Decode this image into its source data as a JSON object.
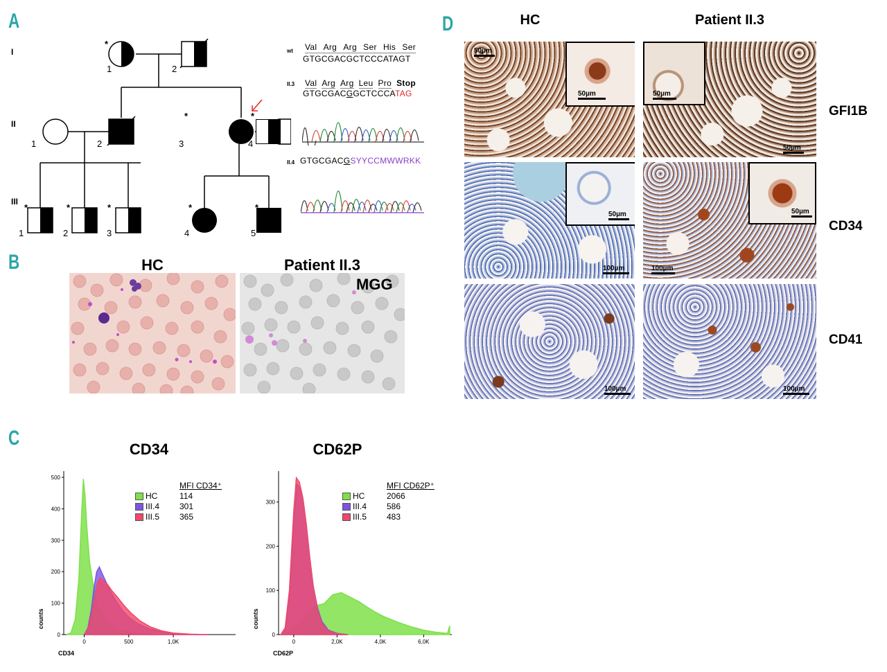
{
  "panels": {
    "a": "A",
    "b": "B",
    "c": "C",
    "d": "D"
  },
  "pedigree": {
    "generations": [
      "I",
      "II",
      "III"
    ],
    "individual_numbers": {
      "I": [
        "1",
        "2"
      ],
      "II": [
        "1",
        "2",
        "3",
        "4"
      ],
      "III": [
        "1",
        "2",
        "3",
        "4",
        "5"
      ]
    },
    "tested_marker": "*"
  },
  "sequences": {
    "wt": {
      "label": "wt",
      "amino_acids": [
        "Val",
        "Arg",
        "Arg",
        "Ser",
        "His",
        "Ser"
      ],
      "dna": "GTGCGACGCTCCCATAGT"
    },
    "ii3": {
      "label": "II.3",
      "amino_acids": [
        "Val",
        "Arg",
        "Arg",
        "Leu",
        "Pro",
        "Stop"
      ],
      "dna_prefix": "GTGCGAC",
      "dna_mut": "G",
      "dna_mid": "GCTCCCA",
      "dna_stop": "TAG"
    },
    "ii4": {
      "label": "II.4",
      "dna_prefix": "GTGCGAC",
      "dna_mut": "G",
      "dna_rest": "SYYCCMWWRKK"
    },
    "colors": {
      "stop": "#e3262b",
      "ambig": "#8a3fc7"
    }
  },
  "panel_b": {
    "left_title": "HC",
    "right_title": "Patient II.3",
    "stain": "MGG"
  },
  "panel_d": {
    "col_titles": [
      "HC",
      "Patient II.3"
    ],
    "row_labels": [
      "GFI1B",
      "CD34",
      "CD41"
    ],
    "scale_50": "50µm",
    "scale_100": "100µm"
  },
  "chart_data": [
    {
      "type": "area",
      "title": "CD34",
      "xlabel": "CD34",
      "ylabel": "counts",
      "x_ticks": [
        "0",
        "500",
        "1,0K"
      ],
      "y_ticks": [
        "0",
        "100",
        "200",
        "300",
        "400",
        "500"
      ],
      "ylim": [
        0,
        520
      ],
      "xlim": [
        -230,
        1700
      ],
      "legend_header": "MFI CD34⁺",
      "series": [
        {
          "name": "HC",
          "mfi": "114",
          "color": "#7fe04a",
          "points": [
            [
              -200,
              0
            ],
            [
              -150,
              5
            ],
            [
              -100,
              50
            ],
            [
              -60,
              180
            ],
            [
              -30,
              380
            ],
            [
              -10,
              495
            ],
            [
              10,
              440
            ],
            [
              30,
              340
            ],
            [
              60,
              230
            ],
            [
              100,
              160
            ],
            [
              140,
              110
            ],
            [
              180,
              80
            ],
            [
              220,
              55
            ],
            [
              280,
              35
            ],
            [
              350,
              20
            ],
            [
              450,
              10
            ],
            [
              600,
              4
            ],
            [
              800,
              1
            ],
            [
              1000,
              0
            ]
          ]
        },
        {
          "name": "III.4",
          "mfi": "301",
          "color": "#7b55e0",
          "points": [
            [
              0,
              0
            ],
            [
              40,
              20
            ],
            [
              80,
              80
            ],
            [
              110,
              150
            ],
            [
              140,
              200
            ],
            [
              170,
              215
            ],
            [
              200,
              195
            ],
            [
              240,
              170
            ],
            [
              290,
              140
            ],
            [
              350,
              110
            ],
            [
              420,
              80
            ],
            [
              500,
              55
            ],
            [
              600,
              35
            ],
            [
              720,
              20
            ],
            [
              850,
              10
            ],
            [
              1000,
              4
            ],
            [
              1200,
              1
            ],
            [
              1400,
              0
            ]
          ]
        },
        {
          "name": "III.5",
          "mfi": "365",
          "color": "#f0486a",
          "points": [
            [
              0,
              0
            ],
            [
              40,
              15
            ],
            [
              80,
              60
            ],
            [
              120,
              120
            ],
            [
              150,
              165
            ],
            [
              180,
              180
            ],
            [
              220,
              170
            ],
            [
              260,
              160
            ],
            [
              310,
              140
            ],
            [
              370,
              120
            ],
            [
              440,
              95
            ],
            [
              520,
              70
            ],
            [
              620,
              45
            ],
            [
              740,
              25
            ],
            [
              870,
              12
            ],
            [
              1000,
              5
            ],
            [
              1200,
              1
            ],
            [
              1400,
              0
            ]
          ]
        }
      ]
    },
    {
      "type": "area",
      "title": "CD62P",
      "xlabel": "CD62P",
      "ylabel": "counts",
      "x_ticks": [
        "0",
        "2,0K",
        "4,0K",
        "6,0K"
      ],
      "y_ticks": [
        "0",
        "100",
        "200",
        "300"
      ],
      "ylim": [
        0,
        370
      ],
      "xlim": [
        -700,
        7300
      ],
      "legend_header": "MFI CD62P⁺",
      "series": [
        {
          "name": "HC",
          "mfi": "2066",
          "color": "#7fe04a",
          "points": [
            [
              -600,
              0
            ],
            [
              -200,
              5
            ],
            [
              200,
              20
            ],
            [
              600,
              45
            ],
            [
              1000,
              65
            ],
            [
              1400,
              70
            ],
            [
              1800,
              90
            ],
            [
              2200,
              95
            ],
            [
              2600,
              85
            ],
            [
              3000,
              75
            ],
            [
              3400,
              62
            ],
            [
              3800,
              50
            ],
            [
              4200,
              40
            ],
            [
              4800,
              28
            ],
            [
              5400,
              18
            ],
            [
              6000,
              10
            ],
            [
              6600,
              5
            ],
            [
              7100,
              3
            ],
            [
              7200,
              20
            ]
          ]
        },
        {
          "name": "III.4",
          "mfi": "586",
          "color": "#7b55e0",
          "points": [
            [
              -600,
              0
            ],
            [
              -400,
              10
            ],
            [
              -200,
              80
            ],
            [
              0,
              250
            ],
            [
              150,
              340
            ],
            [
              300,
              330
            ],
            [
              450,
              300
            ],
            [
              600,
              240
            ],
            [
              750,
              170
            ],
            [
              900,
              110
            ],
            [
              1100,
              60
            ],
            [
              1300,
              30
            ],
            [
              1600,
              10
            ],
            [
              2000,
              3
            ],
            [
              2500,
              0
            ]
          ]
        },
        {
          "name": "III.5",
          "mfi": "483",
          "color": "#f0486a",
          "points": [
            [
              -600,
              0
            ],
            [
              -400,
              15
            ],
            [
              -200,
              100
            ],
            [
              0,
              280
            ],
            [
              120,
              355
            ],
            [
              260,
              345
            ],
            [
              420,
              310
            ],
            [
              580,
              250
            ],
            [
              740,
              175
            ],
            [
              900,
              110
            ],
            [
              1100,
              55
            ],
            [
              1300,
              25
            ],
            [
              1600,
              8
            ],
            [
              2000,
              2
            ],
            [
              2500,
              0
            ]
          ]
        }
      ]
    }
  ]
}
